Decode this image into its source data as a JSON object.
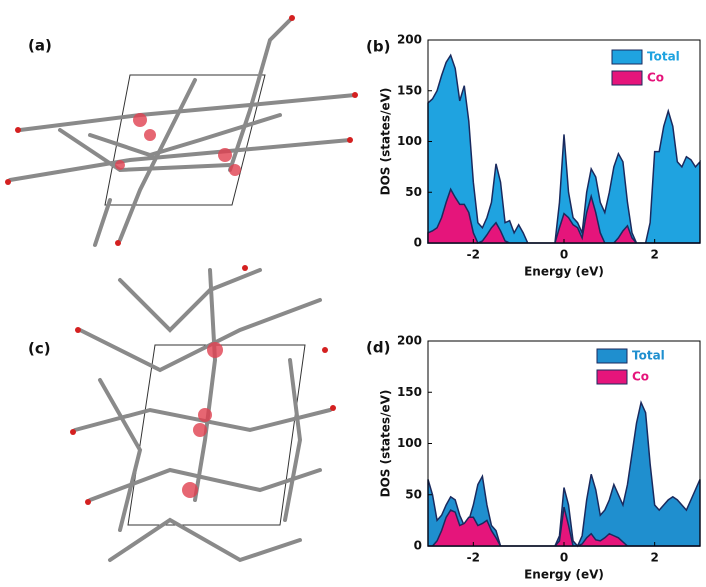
{
  "structure_panels": [
    {
      "label": "(a)"
    },
    {
      "label": "(c)"
    }
  ],
  "chart_data": [
    {
      "type": "area",
      "panel_label": "(b)",
      "x_label": "Energy (eV)",
      "y_label": "DOS (states/eV)",
      "xlim": [
        -3,
        3
      ],
      "xticks": [
        -2,
        0,
        2
      ],
      "ylim": [
        0,
        200
      ],
      "yticks": [
        0,
        50,
        100,
        150,
        200
      ],
      "legend": "upper right",
      "x": [
        -3.0,
        -2.9,
        -2.8,
        -2.7,
        -2.6,
        -2.5,
        -2.4,
        -2.3,
        -2.2,
        -2.1,
        -2.0,
        -1.9,
        -1.8,
        -1.7,
        -1.6,
        -1.5,
        -1.4,
        -1.3,
        -1.2,
        -1.1,
        -1.0,
        -0.9,
        -0.8,
        -0.7,
        -0.6,
        -0.5,
        -0.4,
        -0.3,
        -0.2,
        -0.1,
        0.0,
        0.1,
        0.2,
        0.3,
        0.4,
        0.5,
        0.6,
        0.7,
        0.8,
        0.9,
        1.0,
        1.1,
        1.2,
        1.3,
        1.4,
        1.5,
        1.6,
        1.7,
        1.8,
        1.9,
        2.0,
        2.1,
        2.2,
        2.3,
        2.4,
        2.5,
        2.6,
        2.7,
        2.8,
        2.9,
        3.0
      ],
      "series": [
        {
          "name": "Total",
          "color": "#1fa3e0",
          "values": [
            138,
            142,
            150,
            165,
            178,
            185,
            172,
            140,
            155,
            120,
            60,
            20,
            15,
            25,
            40,
            78,
            60,
            20,
            22,
            10,
            18,
            10,
            0,
            0,
            0,
            0,
            0,
            0,
            0,
            40,
            107,
            50,
            25,
            20,
            10,
            50,
            73,
            65,
            40,
            30,
            50,
            75,
            88,
            80,
            40,
            10,
            0,
            0,
            0,
            20,
            90,
            90,
            115,
            130,
            115,
            80,
            75,
            85,
            82,
            75,
            80
          ]
        },
        {
          "name": "Co",
          "color": "#e5157b",
          "values": [
            10,
            12,
            15,
            25,
            40,
            53,
            45,
            38,
            38,
            30,
            10,
            0,
            2,
            8,
            15,
            20,
            12,
            2,
            0,
            0,
            0,
            0,
            0,
            0,
            0,
            0,
            0,
            0,
            0,
            15,
            29,
            25,
            18,
            15,
            5,
            30,
            46,
            30,
            10,
            0,
            0,
            0,
            5,
            12,
            17,
            5,
            0,
            0,
            0,
            0,
            0,
            0,
            0,
            0,
            0,
            0,
            0,
            0,
            0,
            0,
            0
          ]
        }
      ]
    },
    {
      "type": "area",
      "panel_label": "(d)",
      "x_label": "Energy (eV)",
      "y_label": "DOS (states/eV)",
      "xlim": [
        -3,
        3
      ],
      "xticks": [
        -2,
        0,
        2
      ],
      "ylim": [
        0,
        200
      ],
      "yticks": [
        0,
        50,
        100,
        150,
        200
      ],
      "legend": "upper right",
      "x": [
        -3.0,
        -2.9,
        -2.8,
        -2.7,
        -2.6,
        -2.5,
        -2.4,
        -2.3,
        -2.2,
        -2.1,
        -2.0,
        -1.9,
        -1.8,
        -1.7,
        -1.6,
        -1.5,
        -1.4,
        -1.3,
        -1.2,
        -1.1,
        -1.0,
        -0.9,
        -0.8,
        -0.7,
        -0.6,
        -0.5,
        -0.4,
        -0.3,
        -0.2,
        -0.1,
        0.0,
        0.1,
        0.2,
        0.3,
        0.4,
        0.5,
        0.6,
        0.7,
        0.8,
        0.9,
        1.0,
        1.1,
        1.2,
        1.3,
        1.4,
        1.5,
        1.6,
        1.7,
        1.8,
        1.9,
        2.0,
        2.1,
        2.2,
        2.3,
        2.4,
        2.5,
        2.6,
        2.7,
        2.8,
        2.9,
        3.0
      ],
      "series": [
        {
          "name": "Total",
          "color": "#1f8fcf",
          "values": [
            65,
            50,
            25,
            30,
            40,
            48,
            45,
            30,
            20,
            25,
            40,
            60,
            68,
            40,
            20,
            15,
            0,
            0,
            0,
            0,
            0,
            0,
            0,
            0,
            0,
            0,
            0,
            0,
            0,
            10,
            57,
            40,
            5,
            0,
            10,
            45,
            70,
            55,
            30,
            35,
            45,
            60,
            50,
            40,
            60,
            90,
            120,
            140,
            130,
            80,
            40,
            35,
            40,
            45,
            48,
            45,
            40,
            35,
            45,
            55,
            65
          ]
        },
        {
          "name": "Co",
          "color": "#e5157b",
          "values": [
            0,
            0,
            5,
            15,
            28,
            35,
            33,
            20,
            22,
            28,
            28,
            20,
            22,
            25,
            15,
            8,
            0,
            0,
            0,
            0,
            0,
            0,
            0,
            0,
            0,
            0,
            0,
            0,
            0,
            5,
            38,
            20,
            0,
            0,
            2,
            8,
            12,
            6,
            5,
            8,
            12,
            10,
            8,
            4,
            0,
            0,
            0,
            0,
            0,
            0,
            0,
            0,
            0,
            0,
            0,
            0,
            0,
            0,
            0,
            0,
            0
          ]
        }
      ]
    }
  ]
}
